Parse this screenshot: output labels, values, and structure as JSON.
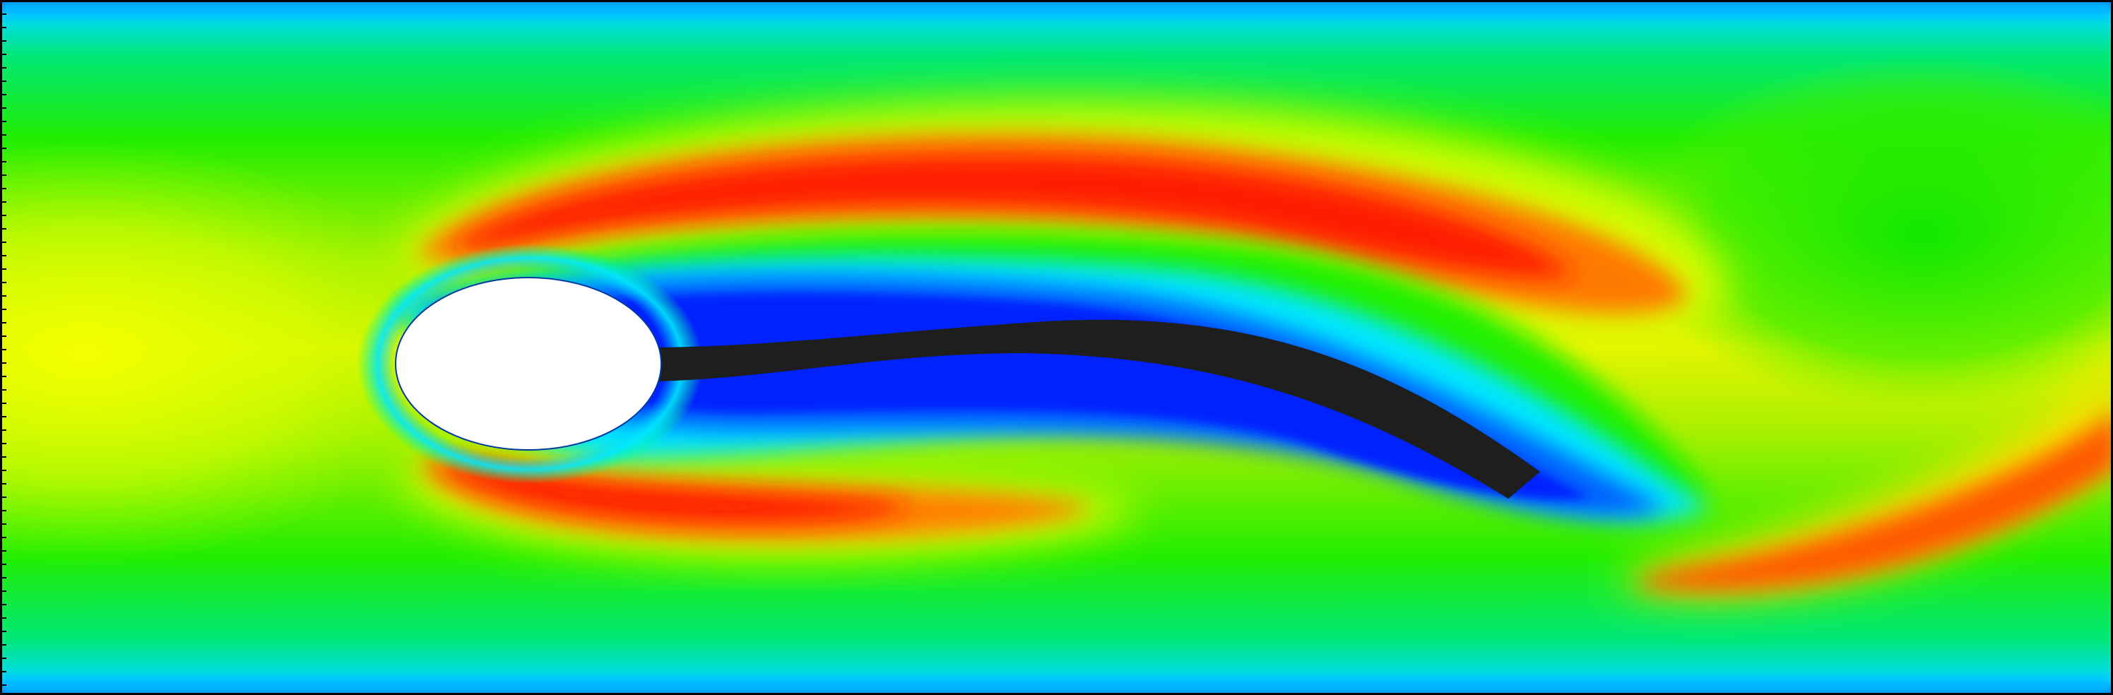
{
  "scene": {
    "description_visible_text": "",
    "colormap": [
      "#0000ff",
      "#00ffff",
      "#00ff00",
      "#ffff00",
      "#ff0000"
    ],
    "colors": {
      "cylinder": "#ffffff",
      "flap": "#1e1e1e",
      "border": "#000000",
      "low": "#0028ff",
      "mid": "#00e600",
      "high": "#ff1400"
    }
  }
}
